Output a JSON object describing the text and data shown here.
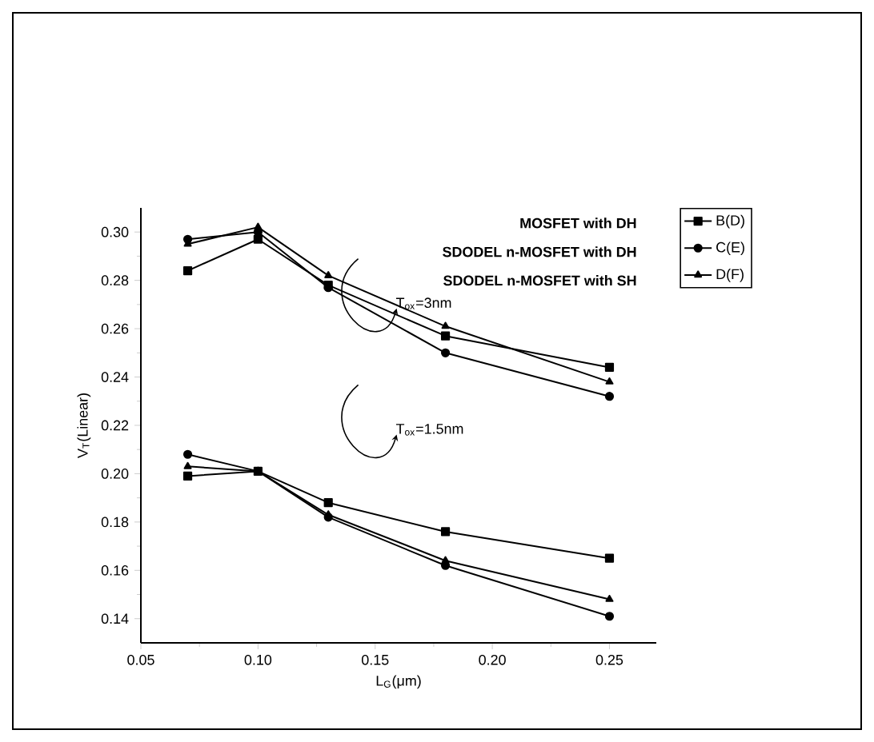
{
  "chart_data": {
    "type": "line",
    "xlabel": "L$_{G}$(μm)",
    "ylabel": "V$_{T}$(Linear)",
    "xlim": [
      0.05,
      0.27
    ],
    "xticks": [
      {
        "value": 0.05,
        "label": "0.05"
      },
      {
        "value": 0.1,
        "label": "0.10"
      },
      {
        "value": 0.15,
        "label": "0.15"
      },
      {
        "value": 0.2,
        "label": "0.20"
      },
      {
        "value": 0.25,
        "label": "0.25"
      }
    ],
    "ylim": [
      0.13,
      0.31
    ],
    "yticks": [
      {
        "value": 0.14,
        "label": "0.14"
      },
      {
        "value": 0.16,
        "label": "0.16"
      },
      {
        "value": 0.18,
        "label": "0.18"
      },
      {
        "value": 0.2,
        "label": "0.20"
      },
      {
        "value": 0.22,
        "label": "0.22"
      },
      {
        "value": 0.24,
        "label": "0.24"
      },
      {
        "value": 0.26,
        "label": "0.26"
      },
      {
        "value": 0.28,
        "label": "0.28"
      },
      {
        "value": 0.3,
        "label": "0.30"
      }
    ],
    "x": [
      0.07,
      0.1,
      0.13,
      0.18,
      0.25
    ],
    "series": [
      {
        "name": "B(D)",
        "color": "#000000",
        "marker": "square",
        "values": [
          0.284,
          0.297,
          0.278,
          0.257,
          0.244
        ]
      },
      {
        "name": "C(E)",
        "color": "#000000",
        "marker": "circle",
        "values": [
          0.297,
          0.3,
          0.277,
          0.25,
          0.232
        ]
      },
      {
        "name": "D(F)",
        "color": "#000000",
        "marker": "triangle",
        "values": [
          0.295,
          0.302,
          0.282,
          0.261,
          0.238
        ]
      },
      {
        "color": "#000000",
        "marker": "square",
        "values": [
          0.199,
          0.201,
          0.188,
          0.176,
          0.165
        ]
      },
      {
        "color": "#000000",
        "marker": "circle",
        "values": [
          0.208,
          0.201,
          0.182,
          0.162,
          0.141
        ]
      },
      {
        "color": "#000000",
        "marker": "triangle",
        "values": [
          0.203,
          0.201,
          0.183,
          0.164,
          0.148
        ]
      }
    ],
    "annotations": [
      "T$_{ox}$=3nm",
      "T$_{ox}$=1.5nm",
      "MOSFET with DH",
      "SDODEL n-MOSFET with DH",
      "SDODEL n-MOSFET with SH"
    ],
    "legend": "top right",
    "grid": false,
    "line_style": "solid"
  }
}
